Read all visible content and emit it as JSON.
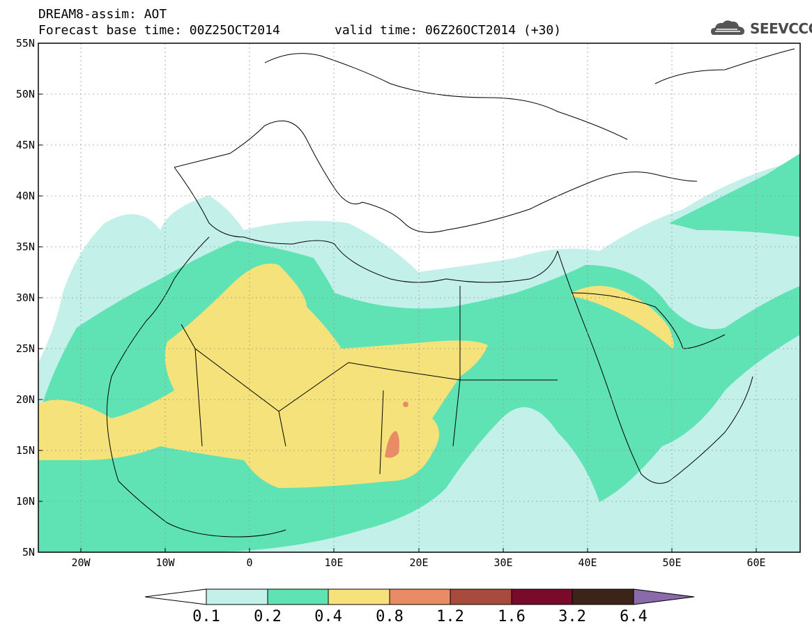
{
  "header": {
    "title": "DREAM8-assim: AOT",
    "base_time": "Forecast base time: 00Z25OCT2014",
    "valid_time": "valid time: 06Z26OCT2014 (+30)",
    "logo": "SEEVCCC"
  },
  "map": {
    "lat_labels": [
      "55N",
      "50N",
      "45N",
      "40N",
      "35N",
      "30N",
      "25N",
      "20N",
      "15N",
      "10N",
      "5N"
    ],
    "lon_labels": [
      "20W",
      "10W",
      "0",
      "10E",
      "20E",
      "30E",
      "40E",
      "50E",
      "60E"
    ],
    "extent": {
      "lon": [
        -25,
        65
      ],
      "lat": [
        5,
        55
      ]
    }
  },
  "colorbar": {
    "labels": [
      "0.1",
      "0.2",
      "0.4",
      "0.8",
      "1.2",
      "1.6",
      "3.2",
      "6.4"
    ],
    "colors": [
      "#ffffff",
      "#c4f0ea",
      "#5fe2b4",
      "#f5e27a",
      "#e98c66",
      "#a84a3c",
      "#7a0a2a",
      "#3d2418",
      "#8a6aa8"
    ]
  }
}
